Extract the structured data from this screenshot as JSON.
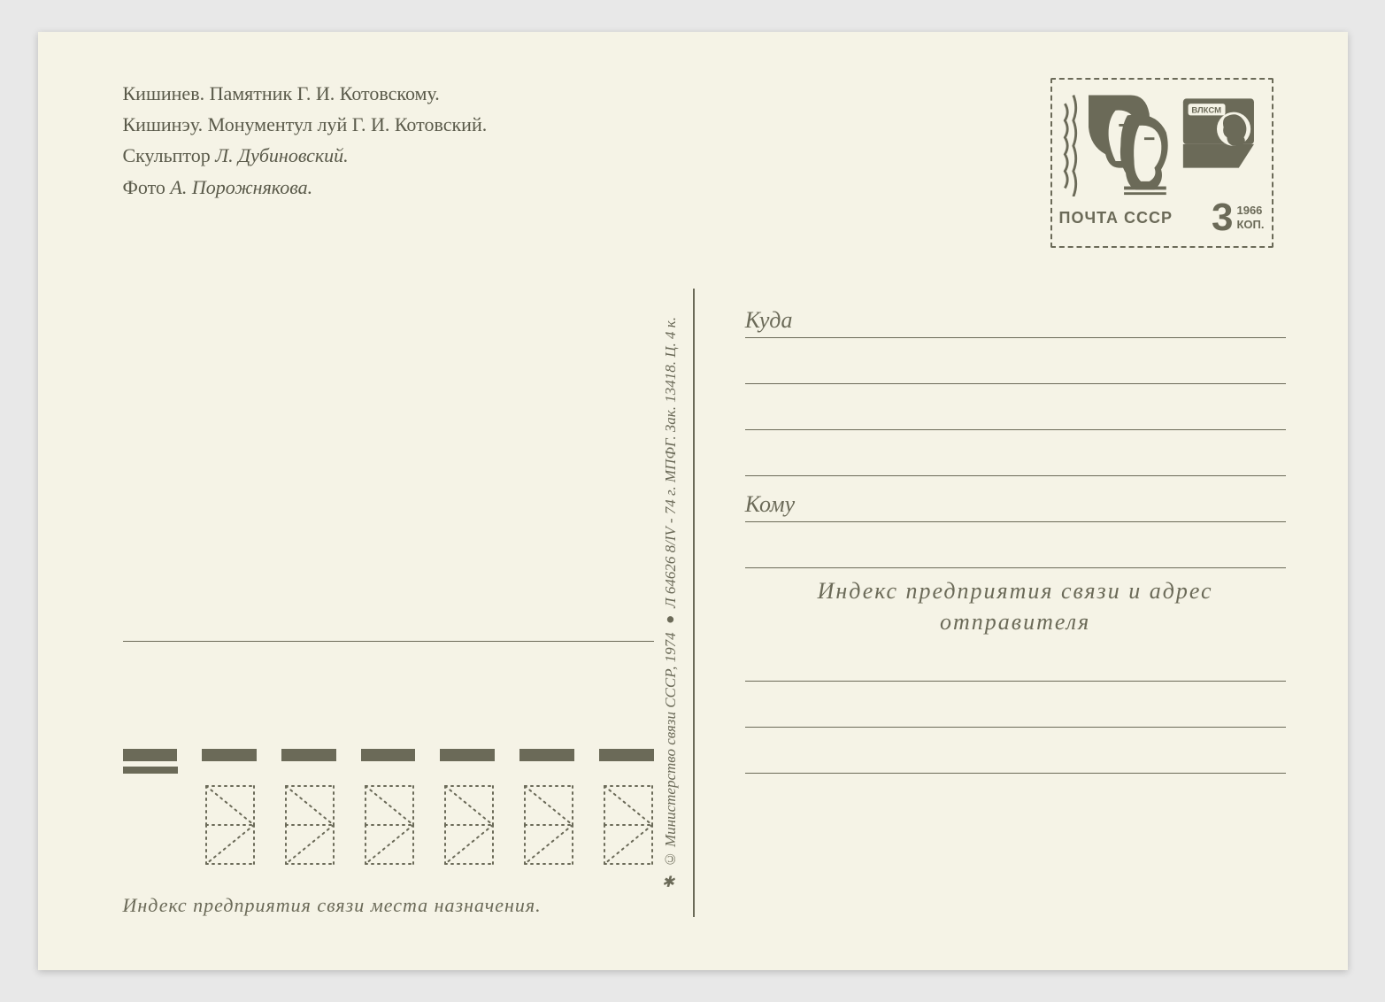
{
  "colors": {
    "ink": "#6b6a58",
    "paper": "#f5f3e6",
    "page_bg": "#e8e8e8"
  },
  "header": {
    "line1": "Кишинев. Памятник Г. И. Котовскому.",
    "line2": "Кишинэу. Монументул луй Г. И. Котовский.",
    "line3_prefix": "Скульптор ",
    "line3_italic": "Л. Дубиновский.",
    "line4_prefix": "Фото ",
    "line4_italic": "А. Порожнякова."
  },
  "stamp": {
    "pochta": "ПОЧТА СССР",
    "value": "3",
    "year": "1966",
    "kop": "КОП.",
    "badge": "ВЛКСМ"
  },
  "vertical_imprint": "✱ © Министерство связи СССР, 1974 ● Л 64626 8/IV - 74 г. МПФГ. Зак. 13418. Ц. 4 к.",
  "address": {
    "kuda": "Куда",
    "komu": "Кому",
    "sender_l1": "Индекс предприятия связи и адрес",
    "sender_l2": "отправителя"
  },
  "index_caption": "Индекс предприятия связи места назначения.",
  "index": {
    "big_bars": 7,
    "cells": 6
  }
}
